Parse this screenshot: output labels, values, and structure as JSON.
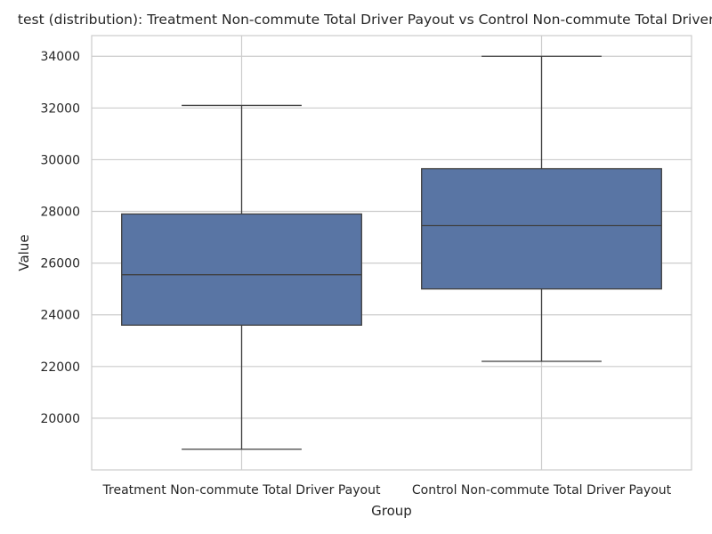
{
  "chart_data": {
    "type": "box",
    "title": "test (distribution): Treatment Non-commute Total Driver Payout vs Control Non-commute Total Driver Payout",
    "xlabel": "Group",
    "ylabel": "Value",
    "ylim": [
      18000,
      34800
    ],
    "yticks": [
      20000,
      22000,
      24000,
      26000,
      28000,
      30000,
      32000,
      34000
    ],
    "grid": true,
    "box_color": "#5975a4",
    "edge_color": "#3f3f3f",
    "grid_color": "#cccccc",
    "categories": [
      "Treatment Non-commute Total Driver Payout",
      "Control Non-commute Total Driver Payout"
    ],
    "boxes": [
      {
        "whisker_low": 18800,
        "q1": 23600,
        "median": 25550,
        "q3": 27900,
        "whisker_high": 32100
      },
      {
        "whisker_low": 22200,
        "q1": 25000,
        "median": 27450,
        "q3": 29650,
        "whisker_high": 34000
      }
    ]
  }
}
